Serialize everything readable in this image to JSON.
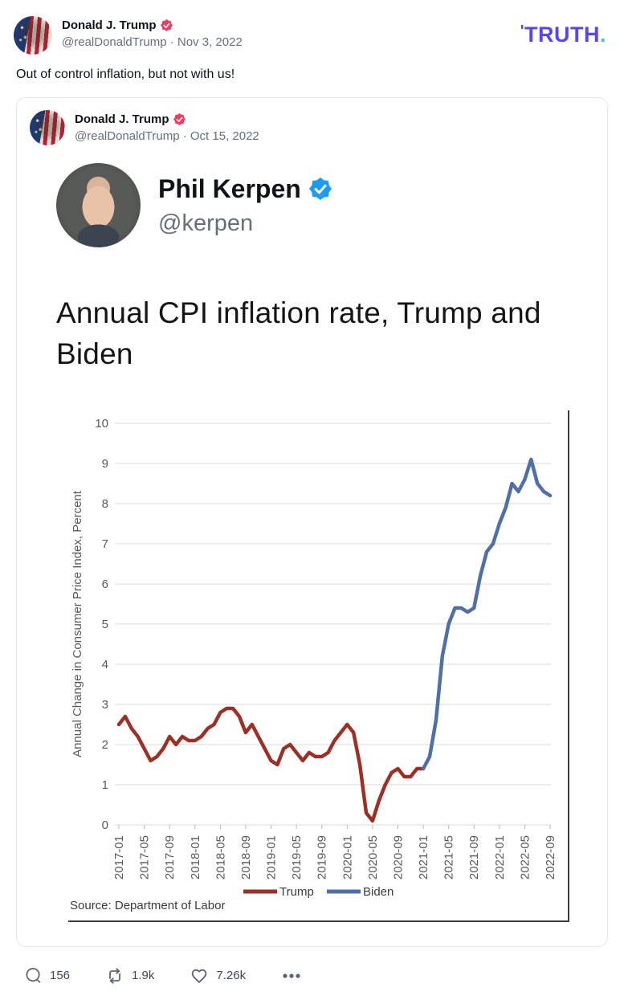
{
  "header": {
    "display_name": "Donald J. Trump",
    "handle_line": "@realDonaldTrump · Nov 3, 2022",
    "logo": {
      "mark": "'",
      "text": "TRUTH",
      "dot": "."
    }
  },
  "post": {
    "body": "Out of control inflation, but not with us!"
  },
  "quote": {
    "display_name": "Donald J. Trump",
    "handle_line": "@realDonaldTrump · Oct 15, 2022"
  },
  "tweet": {
    "author": "Phil Kerpen",
    "handle": "@kerpen",
    "title": "Annual CPI inflation rate, Trump and Biden"
  },
  "chart_data": {
    "type": "line",
    "title": "Annual CPI inflation rate, Trump and Biden",
    "ylabel": "Annual Change in Consumer Price Index, Percent",
    "source": "Source: Department of Labor",
    "ylim": [
      0,
      10
    ],
    "yticks": [
      0,
      1,
      2,
      3,
      4,
      5,
      6,
      7,
      8,
      9,
      10
    ],
    "grid_on": true,
    "grid_color": "#d9d9d9",
    "axis_color": "#595959",
    "legend_position": "bottom",
    "x_start": "2017-01",
    "x_end": "2022-09",
    "months_total": 69,
    "xtick_step": 4,
    "xtick_labels": [
      "2017-01",
      "2017-05",
      "2017-09",
      "2018-01",
      "2018-05",
      "2018-09",
      "2019-01",
      "2019-05",
      "2019-09",
      "2020-01",
      "2020-05",
      "2020-09",
      "2021-01",
      "2021-05",
      "2021-09",
      "2022-01",
      "2022-05",
      "2022-09"
    ],
    "series": [
      {
        "name": "Trump",
        "color": "#9e2f26",
        "start_index": 0,
        "values": [
          2.5,
          2.7,
          2.4,
          2.2,
          1.9,
          1.6,
          1.7,
          1.9,
          2.2,
          2.0,
          2.2,
          2.1,
          2.1,
          2.2,
          2.4,
          2.5,
          2.8,
          2.9,
          2.9,
          2.7,
          2.3,
          2.5,
          2.2,
          1.9,
          1.6,
          1.5,
          1.9,
          2.0,
          1.8,
          1.6,
          1.8,
          1.7,
          1.7,
          1.8,
          2.1,
          2.3,
          2.5,
          2.3,
          1.5,
          0.3,
          0.1,
          0.6,
          1.0,
          1.3,
          1.4,
          1.2,
          1.2,
          1.4,
          1.4
        ]
      },
      {
        "name": "Biden",
        "color": "#4f6fa8",
        "start_index": 48,
        "values": [
          1.4,
          1.7,
          2.6,
          4.2,
          5.0,
          5.4,
          5.4,
          5.3,
          5.4,
          6.2,
          6.8,
          7.0,
          7.5,
          7.9,
          8.5,
          8.3,
          8.6,
          9.1,
          8.5,
          8.3,
          8.2
        ]
      }
    ]
  },
  "engagement": {
    "replies": "156",
    "reposts": "1.9k",
    "likes": "7.26k"
  },
  "colors": {
    "truth_badge": "#ef3e62",
    "twitter_badge": "#1d9bf0",
    "logo_purple": "#5448ee",
    "logo_teal": "#2fd6bb"
  }
}
